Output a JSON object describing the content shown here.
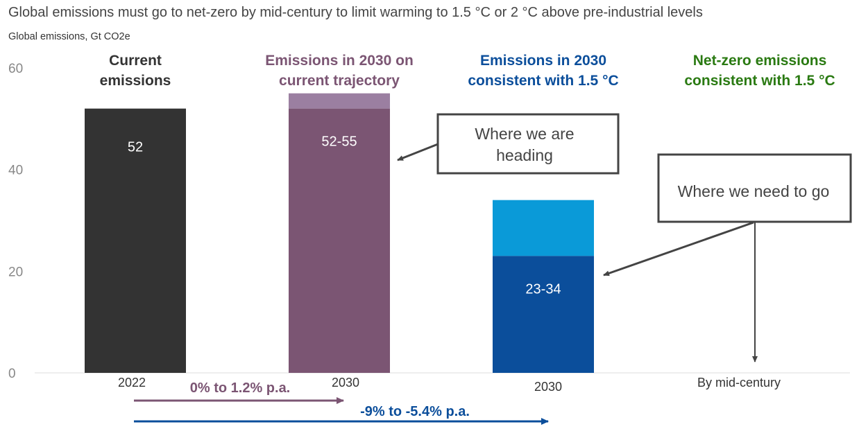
{
  "chart_data": {
    "type": "bar",
    "title": "Global emissions must go to net-zero by mid-century to limit warming to 1.5 °C or 2 °C above pre-industrial levels",
    "subtitle": "Global emissions, Gt CO2e",
    "ylim": [
      0,
      60
    ],
    "yticks": [
      0,
      20,
      40,
      60
    ],
    "grid": false,
    "categories": [
      "2022",
      "2030",
      "2030",
      "By mid-century"
    ],
    "column_headers": [
      {
        "lines": [
          "Current",
          "emissions"
        ],
        "color": "#333333"
      },
      {
        "lines": [
          "Emissions in 2030 on",
          "current trajectory"
        ],
        "color": "#7b5573"
      },
      {
        "lines": [
          "Emissions in 2030",
          "consistent with 1.5 °C"
        ],
        "color": "#0b4e9b"
      },
      {
        "lines": [
          "Net-zero emissions",
          "consistent with 1.5 °C"
        ],
        "color": "#2a7a12"
      }
    ],
    "bars": [
      {
        "low": 52,
        "high": 52,
        "label": "52",
        "color": "#333333",
        "color_range": "#333333"
      },
      {
        "low": 52,
        "high": 55,
        "label": "52-55",
        "color": "#7b5573",
        "color_range": "#9b7fa1"
      },
      {
        "low": 23,
        "high": 34,
        "label": "23-34",
        "color": "#0b4e9b",
        "color_range": "#0a9ad8"
      },
      null
    ],
    "callouts": [
      {
        "lines": [
          "Where we are",
          "heading"
        ]
      },
      {
        "lines": [
          "Where we need to go"
        ]
      }
    ],
    "growth_arrows": [
      {
        "label": "0% to 1.2% p.a.",
        "color": "#7b5573"
      },
      {
        "label": "-9% to -5.4% p.a.",
        "color": "#0b4e9b"
      }
    ]
  }
}
